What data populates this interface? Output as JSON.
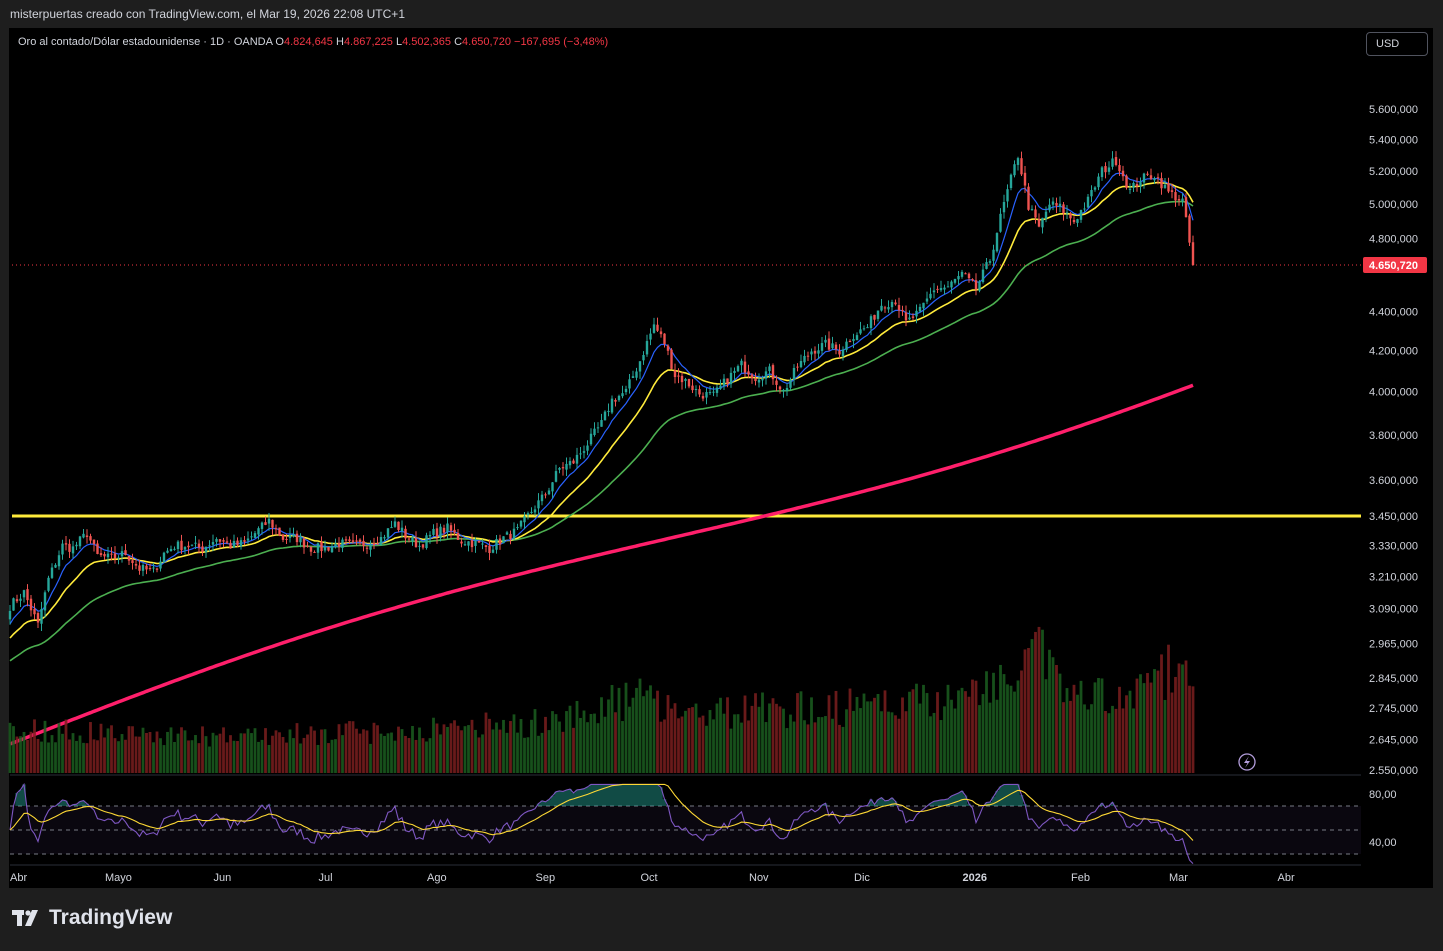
{
  "header": {
    "byline": "misterpuertas creado con TradingView.com, el Mar 19, 2026 22:08 UTC+1"
  },
  "legend": {
    "symbol": "Oro al contado/Dólar estadounidense · 1D · OANDA",
    "o_label": "O",
    "o_value": "4.824,645",
    "h_label": "H",
    "h_value": "4.867,225",
    "l_label": "L",
    "l_value": "4.502,365",
    "c_label": "C",
    "c_value": "4.650,720",
    "change": "−167,695 (−3,48%)"
  },
  "currency_button": "USD",
  "brand": {
    "name": "TradingView",
    "logo_icon": "tradingview-logo-icon"
  },
  "colors": {
    "up": "#26a69a",
    "down": "#ef5350",
    "ema_fast": "#2962ff",
    "ema_mid": "#ffeb3b",
    "ema_slow": "#4caf50",
    "ma_long": "#ff1f6b",
    "hline": "#ffeb3b",
    "rsi": "#7e57c2",
    "rsi_ma": "#fdd835",
    "price_tag": "#f23645"
  },
  "chart_data": {
    "type": "candlestick",
    "instrument": "XAUUSD",
    "timeframe": "1D",
    "y_scale": "log",
    "ylim": [
      2550,
      5700
    ],
    "price_ticks": [
      "5.600,000",
      "5.400,000",
      "5.200,000",
      "5.000,000",
      "4.800,000",
      "4.400,000",
      "4.200,000",
      "4.000,000",
      "3.800,000",
      "3.600,000",
      "3.450,000",
      "3.330,000",
      "3.210,000",
      "3.090,000",
      "2.965,000",
      "2.845,000",
      "2.745,000",
      "2.645,000",
      "2.550,000"
    ],
    "price_tick_values": [
      5600,
      5400,
      5200,
      5000,
      4800,
      4400,
      4200,
      4000,
      3800,
      3600,
      3450,
      3330,
      3210,
      3090,
      2965,
      2845,
      2745,
      2645,
      2550
    ],
    "last_price": "4.650,720",
    "last_price_value": 4650.72,
    "x_labels": [
      "Abr",
      "Mayo",
      "Jun",
      "Jul",
      "Ago",
      "Sep",
      "Oct",
      "Nov",
      "Dic",
      "2026",
      "Feb",
      "Mar",
      "Abr"
    ],
    "x_label_days": [
      0,
      30,
      61,
      91,
      122,
      153,
      183,
      214,
      244,
      275,
      306,
      334,
      365
    ],
    "horizontal_line": 3450,
    "close_anchors": [
      [
        0,
        3100
      ],
      [
        4,
        3150
      ],
      [
        8,
        3030
      ],
      [
        11,
        3200
      ],
      [
        15,
        3330
      ],
      [
        18,
        3320
      ],
      [
        22,
        3380
      ],
      [
        25,
        3290
      ],
      [
        29,
        3280
      ],
      [
        33,
        3300
      ],
      [
        37,
        3240
      ],
      [
        41,
        3230
      ],
      [
        44,
        3300
      ],
      [
        47,
        3330
      ],
      [
        51,
        3330
      ],
      [
        55,
        3320
      ],
      [
        59,
        3360
      ],
      [
        63,
        3330
      ],
      [
        67,
        3340
      ],
      [
        70,
        3380
      ],
      [
        74,
        3430
      ],
      [
        78,
        3360
      ],
      [
        82,
        3360
      ],
      [
        86,
        3320
      ],
      [
        90,
        3320
      ],
      [
        94,
        3340
      ],
      [
        98,
        3330
      ],
      [
        102,
        3340
      ],
      [
        106,
        3360
      ],
      [
        110,
        3420
      ],
      [
        113,
        3370
      ],
      [
        117,
        3330
      ],
      [
        121,
        3380
      ],
      [
        125,
        3400
      ],
      [
        129,
        3350
      ],
      [
        133,
        3340
      ],
      [
        137,
        3320
      ],
      [
        141,
        3360
      ],
      [
        145,
        3390
      ],
      [
        149,
        3470
      ],
      [
        153,
        3540
      ],
      [
        157,
        3650
      ],
      [
        161,
        3680
      ],
      [
        165,
        3760
      ],
      [
        169,
        3850
      ],
      [
        172,
        3960
      ],
      [
        176,
        4000
      ],
      [
        180,
        4150
      ],
      [
        184,
        4330
      ],
      [
        187,
        4240
      ],
      [
        190,
        4080
      ],
      [
        193,
        4050
      ],
      [
        197,
        3990
      ],
      [
        201,
        3980
      ],
      [
        205,
        4060
      ],
      [
        209,
        4130
      ],
      [
        213,
        4070
      ],
      [
        217,
        4100
      ],
      [
        221,
        4000
      ],
      [
        225,
        4120
      ],
      [
        229,
        4200
      ],
      [
        233,
        4230
      ],
      [
        237,
        4200
      ],
      [
        241,
        4280
      ],
      [
        245,
        4320
      ],
      [
        249,
        4440
      ],
      [
        253,
        4460
      ],
      [
        256,
        4340
      ],
      [
        260,
        4400
      ],
      [
        264,
        4520
      ],
      [
        268,
        4530
      ],
      [
        272,
        4600
      ],
      [
        276,
        4520
      ],
      [
        280,
        4680
      ],
      [
        284,
        5000
      ],
      [
        288,
        5300
      ],
      [
        291,
        4990
      ],
      [
        294,
        4860
      ],
      [
        297,
        5000
      ],
      [
        300,
        4980
      ],
      [
        304,
        4900
      ],
      [
        308,
        5020
      ],
      [
        312,
        5200
      ],
      [
        316,
        5270
      ],
      [
        320,
        5080
      ],
      [
        323,
        5150
      ],
      [
        327,
        5180
      ],
      [
        331,
        5070
      ],
      [
        335,
        5020
      ],
      [
        338,
        4650
      ]
    ],
    "volume_scale": "relative, 0–1 of panel height",
    "volume_anchors": [
      [
        0,
        0.22
      ],
      [
        60,
        0.18
      ],
      [
        110,
        0.21
      ],
      [
        150,
        0.25
      ],
      [
        180,
        0.38
      ],
      [
        200,
        0.3
      ],
      [
        240,
        0.33
      ],
      [
        270,
        0.38
      ],
      [
        285,
        0.45
      ],
      [
        292,
        0.78
      ],
      [
        300,
        0.4
      ],
      [
        320,
        0.35
      ],
      [
        338,
        0.6
      ]
    ],
    "rsi": {
      "period": 14,
      "ticks": [
        "80,00",
        "40,00"
      ],
      "tick_values": [
        80,
        40
      ],
      "bands": [
        70,
        30
      ],
      "midline": 50
    },
    "indicators": [
      {
        "type": "EMA",
        "period": 8
      },
      {
        "type": "EMA",
        "period": 20
      },
      {
        "type": "EMA",
        "period": 50
      },
      {
        "type": "SMA",
        "period": 200
      }
    ]
  }
}
